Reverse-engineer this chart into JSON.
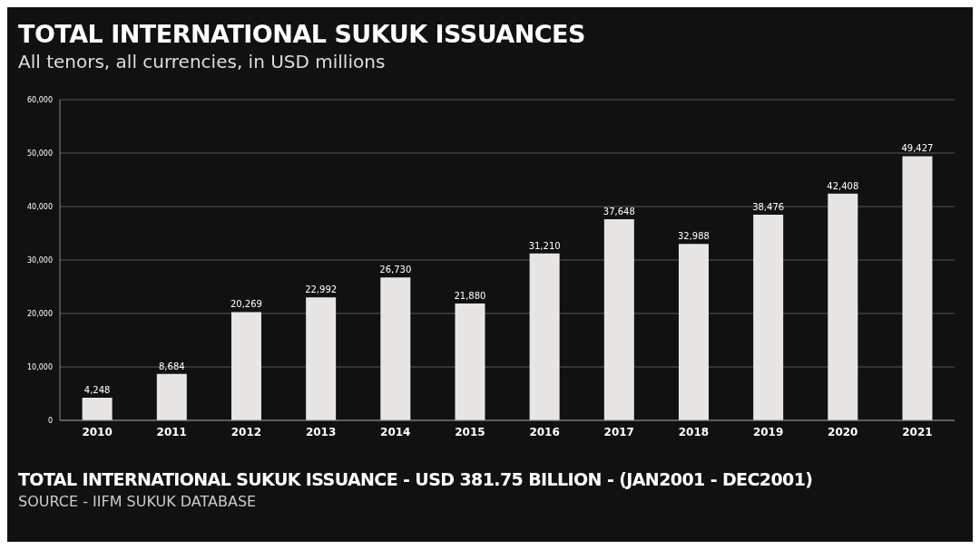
{
  "chart_data": {
    "type": "bar",
    "title": "TOTAL INTERNATIONAL SUKUK ISSUANCES",
    "subtitle": "All tenors, all currencies, in USD millions",
    "categories": [
      "2010",
      "2011",
      "2012",
      "2013",
      "2014",
      "2015",
      "2016",
      "2017",
      "2018",
      "2019",
      "2020",
      "2021"
    ],
    "values": [
      4248,
      8684,
      20269,
      22992,
      26730,
      21880,
      31210,
      37648,
      32988,
      38476,
      42408,
      49427
    ],
    "value_labels": [
      "4,248",
      "8,684",
      "20,269",
      "22,992",
      "26,730",
      "21,880",
      "31,210",
      "37,648",
      "32,988",
      "38,476",
      "42,408",
      "49,427"
    ],
    "color": "#e8e6e4",
    "ylim": [
      0,
      60000
    ],
    "yticks": [
      {
        "value": 0,
        "label": "0"
      },
      {
        "value": 10000,
        "label": "10,000"
      },
      {
        "value": 20000,
        "label": "20,000"
      },
      {
        "value": 30000,
        "label": "30,000"
      },
      {
        "value": 40000,
        "label": "40,000"
      },
      {
        "value": 50000,
        "label": "50,000"
      },
      {
        "value": 60000,
        "label": "60,000"
      }
    ],
    "grid": "y",
    "annotations": [
      "TOTAL INTERNATIONAL SUKUK ISSUANCE - USD 381.75 BILLION - (JAN2001 - DEC2001)",
      "SOURCE - IIFM SUKUK DATABASE"
    ]
  }
}
